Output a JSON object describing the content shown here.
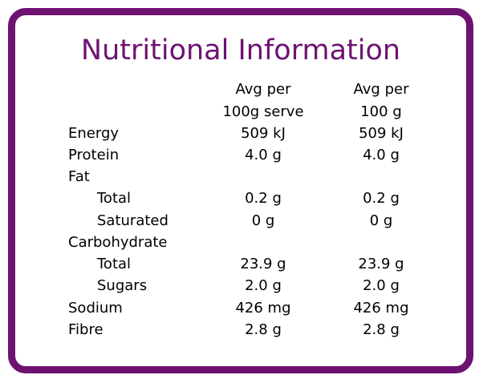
{
  "title": "Nutritional Information",
  "header": {
    "col1": [
      "Avg per",
      "100g serve"
    ],
    "col2": [
      "Avg per",
      "100 g"
    ]
  },
  "rows": [
    {
      "label": "Energy",
      "indent": false,
      "col1": "509 kJ",
      "col2": "509 kJ"
    },
    {
      "label": "Protein",
      "indent": false,
      "col1": "4.0 g",
      "col2": "4.0 g"
    },
    {
      "label": "Fat",
      "indent": false,
      "col1": "",
      "col2": ""
    },
    {
      "label": "Total",
      "indent": true,
      "col1": "0.2 g",
      "col2": "0.2 g"
    },
    {
      "label": "Saturated",
      "indent": true,
      "col1": "0 g",
      "col2": "0 g"
    },
    {
      "label": "Carbohydrate",
      "indent": false,
      "col1": "",
      "col2": ""
    },
    {
      "label": "Total",
      "indent": true,
      "col1": "23.9 g",
      "col2": "23.9 g"
    },
    {
      "label": "Sugars",
      "indent": true,
      "col1": "2.0 g",
      "col2": "2.0 g"
    },
    {
      "label": "Sodium",
      "indent": false,
      "col1": "426 mg",
      "col2": "426 mg"
    },
    {
      "label": "Fibre",
      "indent": false,
      "col1": "2.8 g",
      "col2": "2.8 g"
    }
  ],
  "colors": {
    "border": "#6e1271",
    "title": "#6e1271",
    "text": "#000000"
  }
}
